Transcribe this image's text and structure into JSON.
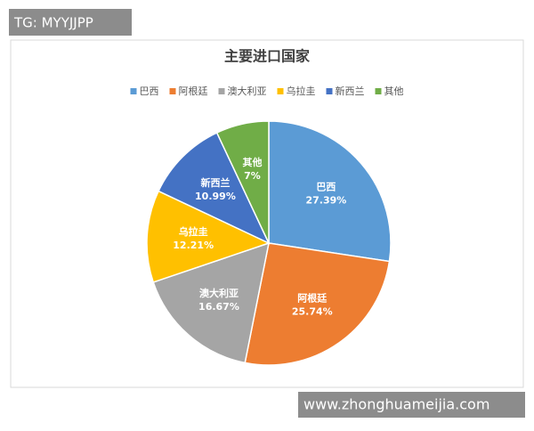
{
  "watermark_top": "TG: MYYJJPP",
  "watermark_bottom": "www.zhonghuameijia.com",
  "chart_data": {
    "type": "pie",
    "title": "主要进口国家",
    "categories": [
      "巴西",
      "阿根廷",
      "澳大利亚",
      "乌拉圭",
      "新西兰",
      "其他"
    ],
    "values": [
      27.39,
      25.74,
      16.67,
      12.21,
      10.99,
      7
    ],
    "value_labels": [
      "27.39%",
      "25.74%",
      "16.67%",
      "12.21%",
      "10.99%",
      "7%"
    ],
    "colors": [
      "#5b9bd5",
      "#ed7d31",
      "#a5a5a5",
      "#ffc000",
      "#4472c4",
      "#70ad47"
    ],
    "legend": "top"
  }
}
